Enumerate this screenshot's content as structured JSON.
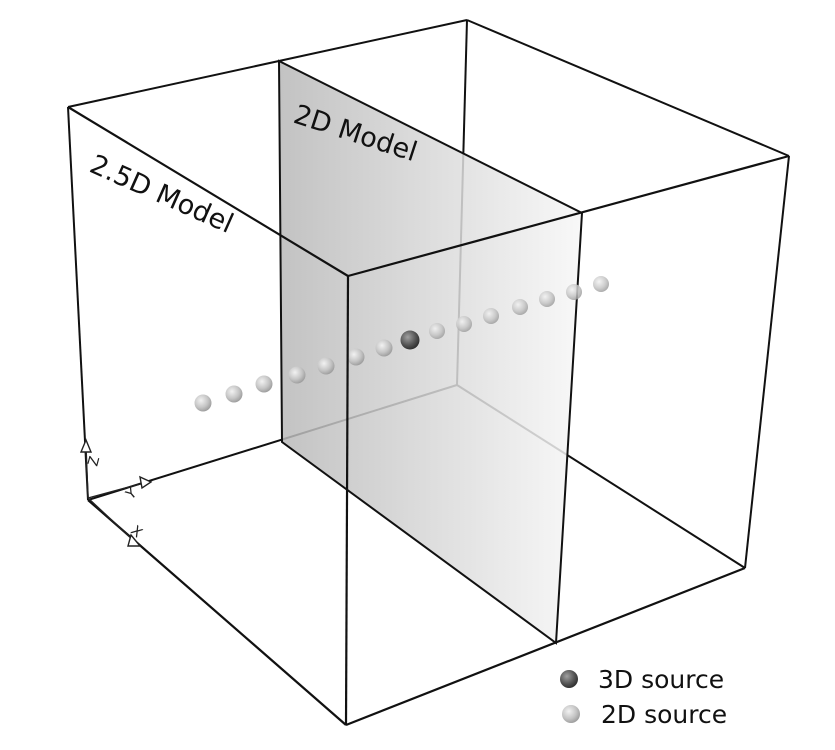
{
  "labels": {
    "model_2d": "2D Model",
    "model_25d": "2.5D Model"
  },
  "axes": {
    "x": "X",
    "y": "Y",
    "z": "Z"
  },
  "legend": {
    "source_3d": "3D source",
    "source_2d": "2D source"
  },
  "colors": {
    "line": "#111111",
    "plane_dark": "#b8b8b8",
    "plane_light": "#f7f7f7",
    "source_3d": "#555555",
    "source_2d": "#c4c4c4"
  },
  "sources": {
    "count_2d_left": 7,
    "count_2d_right": 7,
    "count_3d": 1
  }
}
